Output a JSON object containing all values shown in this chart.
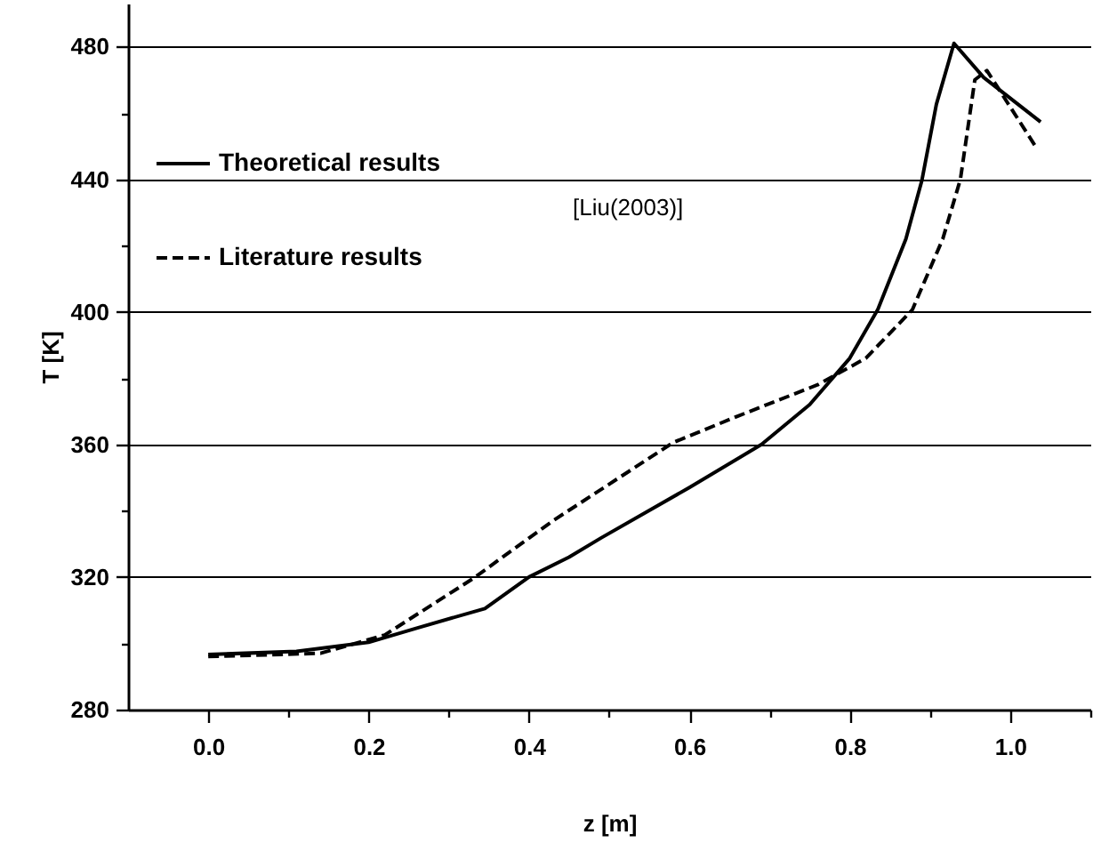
{
  "chart_data": {
    "type": "line",
    "xlabel": "z [m]",
    "ylabel": "T [K]",
    "xlim": [
      -0.1,
      1.1
    ],
    "ylim": [
      280,
      493
    ],
    "xticks": [
      {
        "value": 0,
        "label": "0.0"
      },
      {
        "value": 0.1,
        "label": null
      },
      0.2,
      {
        "value": 0.3,
        "label": null
      },
      0.4,
      {
        "value": 0.5,
        "label": null
      },
      0.6,
      {
        "value": 0.7,
        "label": null
      },
      0.8,
      {
        "value": 0.9,
        "label": null
      },
      {
        "value": 1,
        "label": "1.0"
      },
      {
        "value": 1.1,
        "label": null
      }
    ],
    "yticks": [
      280,
      {
        "value": 300,
        "label": null
      },
      320,
      {
        "value": 340,
        "label": null
      },
      360,
      {
        "value": 380,
        "label": null
      },
      400,
      {
        "value": 420,
        "label": null
      },
      440,
      {
        "value": 460,
        "label": null
      },
      480
    ],
    "grid": "y",
    "legend": "top left",
    "marker": "none",
    "annotations": [
      "[Liu(2003)]"
    ],
    "series": [
      {
        "name": "Theoretical results",
        "color": "#000000",
        "line_style": "solid",
        "x": [
          0.0,
          0.11,
          0.2,
          0.26,
          0.345,
          0.4,
          0.45,
          0.49,
          0.6,
          0.69,
          0.75,
          0.8,
          0.835,
          0.87,
          0.89,
          0.908,
          0.93,
          0.967,
          1.038
        ],
        "values": [
          296.6,
          297.6,
          300.3,
          304.6,
          310.5,
          320,
          326,
          331.8,
          347,
          360,
          372,
          386,
          400.7,
          422,
          439.7,
          462.6,
          481,
          470.7,
          457.3
        ]
      },
      {
        "name": "Literature results",
        "color": "#000000",
        "line_style": "dashed",
        "x": [
          0.0,
          0.14,
          0.22,
          0.33,
          0.43,
          0.58,
          0.66,
          0.76,
          0.82,
          0.878,
          0.916,
          0.938,
          0.956,
          0.971,
          1.033
        ],
        "values": [
          296,
          297,
          302.5,
          319.5,
          337,
          360.6,
          368.5,
          378,
          386,
          400.6,
          422,
          440,
          470,
          472.8,
          449.4
        ]
      }
    ]
  }
}
